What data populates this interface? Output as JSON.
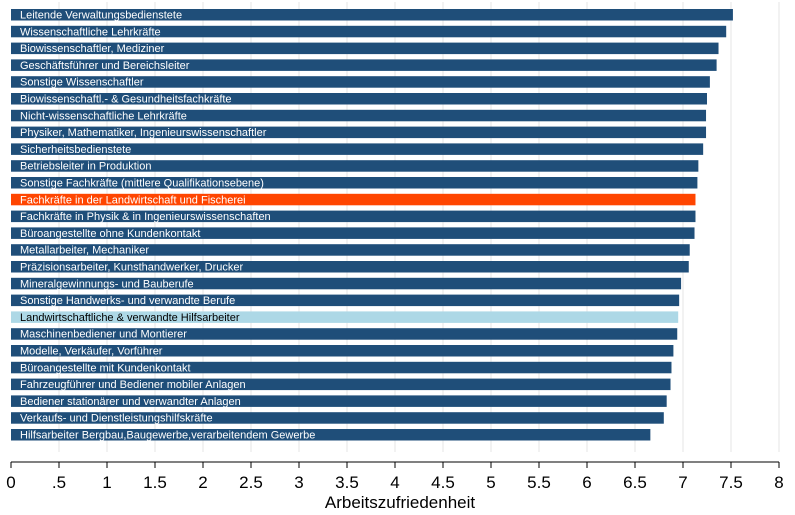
{
  "chart_data": {
    "type": "bar",
    "orientation": "horizontal",
    "xlabel": "Arbeitszufriedenheit",
    "ylabel": "",
    "xlim": [
      0,
      8
    ],
    "xticks": [
      0,
      0.5,
      1,
      1.5,
      2,
      2.5,
      3,
      3.5,
      4,
      4.5,
      5,
      5.5,
      6,
      6.5,
      7,
      7.5,
      8
    ],
    "xtick_labels": [
      "0",
      ".5",
      "1",
      "1.5",
      "2",
      "2.5",
      "3",
      "3.5",
      "4",
      "4.5",
      "5",
      "5.5",
      "6",
      "6.5",
      "7",
      "7.5",
      "8"
    ],
    "grid": "vertical",
    "categories": [
      "Leitende Verwaltungsbedienstete",
      "Wissenschaftliche Lehrkräfte",
      "Biowissenschaftler, Mediziner",
      "Geschäftsführer und Bereichsleiter",
      "Sonstige Wissenschaftler",
      "Biowissenschaftl.- & Gesundheitsfachkräfte",
      "Nicht-wissenschaftliche Lehrkräfte",
      "Physiker, Mathematiker, Ingenieurswissenschaftler",
      "Sicherheitsbedienstete",
      "Betriebsleiter in Produktion",
      "Sonstige Fachkräfte (mittlere Qualifikationsebene)",
      "Fachkräfte in der Landwirtschaft und Fischerei",
      "Fachkräfte in Physik & in Ingenieurswissenschaften",
      "Büroangestellte ohne Kundenkontakt",
      "Metallarbeiter, Mechaniker",
      "Präzisionsarbeiter, Kunsthandwerker, Drucker",
      "Mineralgewinnungs- und Bauberufe",
      "Sonstige Handwerks- und verwandte Berufe",
      "Landwirtschaftliche & verwandte Hilfsarbeiter",
      "Maschinenbediener und Montierer",
      "Modelle, Verkäufer, Vorführer",
      "Büroangestellte mit Kundenkontakt",
      "Fahrzeugführer und Bediener mobiler Anlagen",
      "Bediener stationärer und verwandter Anlagen",
      "Verkaufs- und Dienstleistungshilfskräfte",
      "Hilfsarbeiter Bergbau,Baugewerbe,verarbeitendem Gewerbe"
    ],
    "values": [
      7.52,
      7.45,
      7.37,
      7.35,
      7.28,
      7.25,
      7.24,
      7.24,
      7.21,
      7.16,
      7.15,
      7.13,
      7.13,
      7.12,
      7.07,
      7.06,
      6.98,
      6.96,
      6.95,
      6.94,
      6.9,
      6.88,
      6.87,
      6.83,
      6.8,
      6.66
    ],
    "bar_colors": [
      "#1f4e79",
      "#1f4e79",
      "#1f4e79",
      "#1f4e79",
      "#1f4e79",
      "#1f4e79",
      "#1f4e79",
      "#1f4e79",
      "#1f4e79",
      "#1f4e79",
      "#1f4e79",
      "#ff4500",
      "#1f4e79",
      "#1f4e79",
      "#1f4e79",
      "#1f4e79",
      "#1f4e79",
      "#1f4e79",
      "#add8e6",
      "#1f4e79",
      "#1f4e79",
      "#1f4e79",
      "#1f4e79",
      "#1f4e79",
      "#1f4e79",
      "#1f4e79"
    ],
    "label_colors": [
      "#ffffff",
      "#ffffff",
      "#ffffff",
      "#ffffff",
      "#ffffff",
      "#ffffff",
      "#ffffff",
      "#ffffff",
      "#ffffff",
      "#ffffff",
      "#ffffff",
      "#ffffff",
      "#ffffff",
      "#ffffff",
      "#ffffff",
      "#ffffff",
      "#ffffff",
      "#ffffff",
      "#000000",
      "#ffffff",
      "#ffffff",
      "#ffffff",
      "#ffffff",
      "#ffffff",
      "#ffffff",
      "#ffffff"
    ],
    "colors": {
      "default_bar": "#1f4e79",
      "highlight_orange": "#ff4500",
      "highlight_lightblue": "#add8e6",
      "grid": "#e6e6e6"
    }
  }
}
